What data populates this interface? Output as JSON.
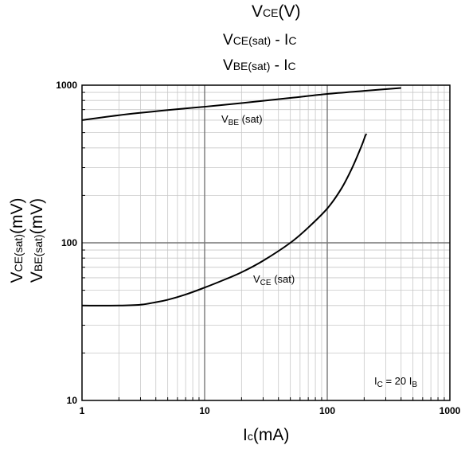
{
  "title": {
    "main": "V",
    "sub": "CE",
    "tail": "(V)"
  },
  "subtitle1": {
    "main": "V",
    "sub": "CE(sat)",
    "tail": " - I",
    "sub2": "C"
  },
  "subtitle2": {
    "main": "V",
    "sub": "BE(sat)",
    "tail": " - I",
    "sub2": "C"
  },
  "chart_data": {
    "type": "line",
    "x_scale": "log",
    "y_scale": "log",
    "xlim": [
      1,
      1000
    ],
    "ylim": [
      10,
      1000
    ],
    "grid": true,
    "xlabel": {
      "main": "I",
      "sub": "c",
      "tail": "(mA)"
    },
    "ylabel": {
      "line1": {
        "main": "V",
        "sub": "CE(sat)",
        "tail": "(mV)"
      },
      "line2": {
        "main": "V",
        "sub": "BE(sat)",
        "tail": "(mV)"
      }
    },
    "x_ticks": [
      "1",
      "10",
      "100",
      "1000"
    ],
    "y_ticks": [
      "10",
      "100",
      "1000"
    ],
    "series": [
      {
        "label": {
          "main": "V",
          "sub": "BE",
          "tail": " (sat)"
        },
        "x": [
          1,
          2,
          5,
          10,
          20,
          50,
          100,
          200,
          400
        ],
        "y": [
          600,
          645,
          695,
          730,
          770,
          830,
          880,
          920,
          960
        ]
      },
      {
        "label": {
          "main": "V",
          "sub": "CE",
          "tail": " (sat)"
        },
        "x": [
          1,
          2,
          3,
          4,
          5,
          7,
          10,
          15,
          20,
          30,
          50,
          70,
          100,
          130,
          160,
          190,
          205,
          210
        ],
        "y": [
          40,
          40,
          40.5,
          42,
          43.5,
          47,
          52,
          59,
          65,
          77,
          100,
          125,
          165,
          220,
          300,
          410,
          480,
          490
        ]
      }
    ],
    "annotation": {
      "main": "I",
      "sub": "C",
      "mid": " = 20 I",
      "sub2": "B"
    }
  }
}
